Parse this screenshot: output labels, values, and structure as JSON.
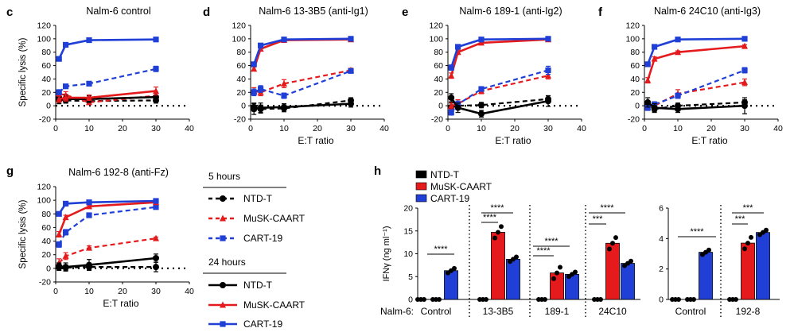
{
  "colors": {
    "ntd": "#000000",
    "musk": "#e41a1c",
    "cart": "#1f3fd6"
  },
  "chart_data": [
    {
      "panel": "c",
      "type": "line",
      "title": "Nalm-6 control",
      "xlabel": "",
      "ylabel": "Specific lysis (%)",
      "xlim": [
        0,
        40
      ],
      "ylim": [
        -20,
        120
      ],
      "xticks": [
        0,
        10,
        20,
        30,
        40
      ],
      "yticks": [
        -20,
        0,
        20,
        40,
        60,
        80,
        100,
        120
      ],
      "x": [
        1,
        3,
        10,
        30
      ],
      "series": [
        {
          "key": "ntd",
          "time": "5 hours",
          "values": [
            12,
            8,
            7,
            8
          ],
          "err": [
            3,
            4,
            5,
            4
          ]
        },
        {
          "key": "musk",
          "time": "5 hours",
          "values": [
            18,
            16,
            5,
            15
          ],
          "err": [
            4,
            5,
            3,
            5
          ]
        },
        {
          "key": "cart",
          "time": "5 hours",
          "values": [
            20,
            29,
            33,
            55
          ],
          "err": [
            4,
            3,
            3,
            4
          ]
        },
        {
          "key": "ntd",
          "time": "24 hours",
          "values": [
            8,
            10,
            10,
            13
          ],
          "err": [
            5,
            6,
            5,
            7
          ]
        },
        {
          "key": "musk",
          "time": "24 hours",
          "values": [
            10,
            12,
            12,
            22
          ],
          "err": [
            5,
            5,
            4,
            6
          ]
        },
        {
          "key": "cart",
          "time": "24 hours",
          "values": [
            70,
            91,
            98,
            99
          ],
          "err": [
            2,
            2,
            1,
            1
          ]
        }
      ]
    },
    {
      "panel": "d",
      "type": "line",
      "title": "Nalm-6 13-3B5 (anti-Ig1)",
      "xlabel": "E:T ratio",
      "ylabel": "",
      "xlim": [
        0,
        40
      ],
      "ylim": [
        -20,
        120
      ],
      "xticks": [
        0,
        10,
        20,
        30,
        40
      ],
      "yticks": [
        -20,
        0,
        20,
        40,
        60,
        80,
        100,
        120
      ],
      "x": [
        1,
        3,
        10,
        30
      ],
      "series": [
        {
          "key": "ntd",
          "time": "5 hours",
          "values": [
            -2,
            -5,
            -4,
            8
          ],
          "err": [
            6,
            6,
            5,
            4
          ]
        },
        {
          "key": "musk",
          "time": "5 hours",
          "values": [
            22,
            20,
            33,
            53
          ],
          "err": [
            5,
            5,
            6,
            3
          ]
        },
        {
          "key": "cart",
          "time": "5 hours",
          "values": [
            20,
            25,
            15,
            52
          ],
          "err": [
            5,
            5,
            4,
            3
          ]
        },
        {
          "key": "ntd",
          "time": "24 hours",
          "values": [
            -5,
            -3,
            -2,
            3
          ],
          "err": [
            8,
            7,
            5,
            5
          ]
        },
        {
          "key": "musk",
          "time": "24 hours",
          "values": [
            55,
            85,
            98,
            99
          ],
          "err": [
            3,
            3,
            2,
            1
          ]
        },
        {
          "key": "cart",
          "time": "24 hours",
          "values": [
            62,
            90,
            99,
            100
          ],
          "err": [
            3,
            2,
            1,
            1
          ]
        }
      ]
    },
    {
      "panel": "e",
      "type": "line",
      "title": "Nalm-6 189-1 (anti-Ig2)",
      "xlabel": "E:T ratio",
      "ylabel": "",
      "xlim": [
        0,
        40
      ],
      "ylim": [
        -20,
        120
      ],
      "xticks": [
        0,
        10,
        20,
        30,
        40
      ],
      "yticks": [
        -20,
        0,
        20,
        40,
        60,
        80,
        100,
        120
      ],
      "x": [
        1,
        3,
        10,
        30
      ],
      "series": [
        {
          "key": "ntd",
          "time": "5 hours",
          "values": [
            -2,
            0,
            1,
            10
          ],
          "err": [
            6,
            5,
            4,
            5
          ]
        },
        {
          "key": "musk",
          "time": "5 hours",
          "values": [
            0,
            3,
            22,
            45
          ],
          "err": [
            5,
            6,
            4,
            5
          ]
        },
        {
          "key": "cart",
          "time": "5 hours",
          "values": [
            -10,
            2,
            25,
            53
          ],
          "err": [
            4,
            5,
            3,
            6
          ]
        },
        {
          "key": "ntd",
          "time": "24 hours",
          "values": [
            12,
            -3,
            -12,
            7
          ],
          "err": [
            6,
            7,
            5,
            8
          ]
        },
        {
          "key": "musk",
          "time": "24 hours",
          "values": [
            45,
            80,
            94,
            99
          ],
          "err": [
            4,
            3,
            2,
            1
          ]
        },
        {
          "key": "cart",
          "time": "24 hours",
          "values": [
            57,
            88,
            99,
            100
          ],
          "err": [
            4,
            3,
            1,
            1
          ]
        }
      ]
    },
    {
      "panel": "f",
      "type": "line",
      "title": "Nalm-6 24C10 (anti-Ig3)",
      "xlabel": "E:T ratio",
      "ylabel": "",
      "xlim": [
        0,
        40
      ],
      "ylim": [
        -20,
        120
      ],
      "xticks": [
        0,
        10,
        20,
        30,
        40
      ],
      "yticks": [
        -20,
        0,
        20,
        40,
        60,
        80,
        100,
        120
      ],
      "x": [
        1,
        3,
        10,
        30
      ],
      "series": [
        {
          "key": "ntd",
          "time": "5 hours",
          "values": [
            2,
            -5,
            0,
            5
          ],
          "err": [
            5,
            5,
            4,
            4
          ]
        },
        {
          "key": "musk",
          "time": "5 hours",
          "values": [
            -2,
            0,
            18,
            35
          ],
          "err": [
            4,
            5,
            6,
            5
          ]
        },
        {
          "key": "cart",
          "time": "5 hours",
          "values": [
            -3,
            2,
            15,
            53
          ],
          "err": [
            4,
            4,
            4,
            4
          ]
        },
        {
          "key": "ntd",
          "time": "24 hours",
          "values": [
            5,
            -3,
            -5,
            0
          ],
          "err": [
            7,
            6,
            5,
            12
          ]
        },
        {
          "key": "musk",
          "time": "24 hours",
          "values": [
            38,
            70,
            80,
            89
          ],
          "err": [
            4,
            3,
            2,
            2
          ]
        },
        {
          "key": "cart",
          "time": "24 hours",
          "values": [
            62,
            88,
            99,
            100
          ],
          "err": [
            3,
            2,
            1,
            1
          ]
        }
      ]
    },
    {
      "panel": "g",
      "type": "line",
      "title": "Nalm-6 192-8 (anti-Fz)",
      "xlabel": "E:T ratio",
      "ylabel": "Specific lysis (%)",
      "xlim": [
        0,
        40
      ],
      "ylim": [
        -20,
        120
      ],
      "xticks": [
        0,
        10,
        20,
        30,
        40
      ],
      "yticks": [
        -20,
        0,
        20,
        40,
        60,
        80,
        100,
        120
      ],
      "x": [
        1,
        3,
        10,
        30
      ],
      "series": [
        {
          "key": "ntd",
          "time": "5 hours",
          "values": [
            2,
            1,
            2,
            2
          ],
          "err": [
            5,
            4,
            4,
            7
          ]
        },
        {
          "key": "musk",
          "time": "5 hours",
          "values": [
            8,
            18,
            30,
            44
          ],
          "err": [
            6,
            5,
            3,
            2
          ]
        },
        {
          "key": "cart",
          "time": "5 hours",
          "values": [
            35,
            53,
            78,
            90
          ],
          "err": [
            4,
            4,
            3,
            2
          ]
        },
        {
          "key": "ntd",
          "time": "24 hours",
          "values": [
            3,
            2,
            5,
            15
          ],
          "err": [
            5,
            6,
            8,
            6
          ]
        },
        {
          "key": "musk",
          "time": "24 hours",
          "values": [
            50,
            75,
            91,
            97
          ],
          "err": [
            4,
            3,
            2,
            1
          ]
        },
        {
          "key": "cart",
          "time": "24 hours",
          "values": [
            80,
            95,
            97,
            99
          ],
          "err": [
            2,
            1,
            1,
            1
          ]
        }
      ]
    },
    {
      "panel": "h",
      "type": "bar",
      "title": "",
      "ylabel": "IFNγ (ng ml⁻¹)",
      "ylim": [
        0,
        20
      ],
      "yticks": [
        0,
        5,
        10,
        15,
        20
      ],
      "row_label": "Nalm-6:",
      "categories": [
        "Control",
        "13-3B5",
        "189-1",
        "24C10"
      ],
      "series": [
        {
          "key": "ntd",
          "values": [
            0,
            0,
            0,
            0
          ]
        },
        {
          "key": "musk",
          "values": [
            0,
            14.7,
            5.8,
            12.3
          ]
        },
        {
          "key": "cart",
          "values": [
            6.3,
            8.8,
            5.5,
            7.9
          ]
        }
      ],
      "significance": [
        "****",
        "****",
        "****",
        "****",
        "****",
        "****",
        "***"
      ]
    },
    {
      "panel": "h-right",
      "type": "bar",
      "title": "",
      "ylabel": "",
      "ylim": [
        0,
        6
      ],
      "yticks": [
        0,
        2,
        4,
        6
      ],
      "categories": [
        "Control",
        "192-8"
      ],
      "series": [
        {
          "key": "ntd",
          "values": [
            0,
            0
          ]
        },
        {
          "key": "musk",
          "values": [
            0,
            3.7
          ]
        },
        {
          "key": "cart",
          "values": [
            3.1,
            4.4
          ]
        }
      ],
      "significance": [
        "****",
        "***",
        "***"
      ]
    }
  ],
  "legend_g": {
    "five_hours": "5 hours",
    "twentyfour_hours": "24 hours",
    "items": [
      "NTD-T",
      "MuSK-CAART",
      "CART-19"
    ]
  },
  "legend_h": {
    "items": [
      "NTD-T",
      "MuSK-CAART",
      "CART-19"
    ]
  }
}
